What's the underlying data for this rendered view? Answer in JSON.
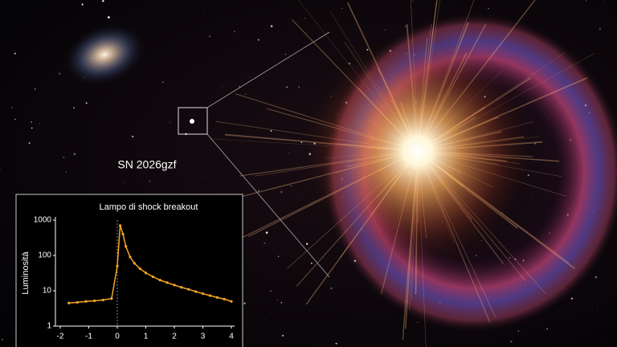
{
  "label": "SN 2026gzf",
  "chart_data": {
    "type": "line",
    "title": "Lampo di shock breakout",
    "ylabel": "Luminosità",
    "yscale": "log",
    "ylim": [
      1,
      1000
    ],
    "yticks": [
      1,
      10,
      100,
      1000
    ],
    "xlim": [
      -2,
      4
    ],
    "xticks": [
      -2,
      -1,
      0,
      1,
      2,
      3,
      4
    ],
    "vline": 0,
    "x": [
      -1.7,
      -1.4,
      -1.1,
      -0.8,
      -0.5,
      -0.2,
      0,
      0.1,
      0.2,
      0.3,
      0.45,
      0.6,
      0.8,
      1.0,
      1.25,
      1.5,
      1.75,
      2,
      2.25,
      2.5,
      2.75,
      3,
      3.25,
      3.5,
      3.75,
      4
    ],
    "series": [
      {
        "color": "#f5a623",
        "values": [
          4.5,
          4.7,
          5,
          5.2,
          5.5,
          6,
          50,
          700,
          400,
          180,
          90,
          60,
          42,
          32,
          25,
          20,
          17,
          14.5,
          12.5,
          11,
          9.5,
          8.3,
          7.3,
          6.5,
          5.8,
          5
        ]
      }
    ]
  }
}
